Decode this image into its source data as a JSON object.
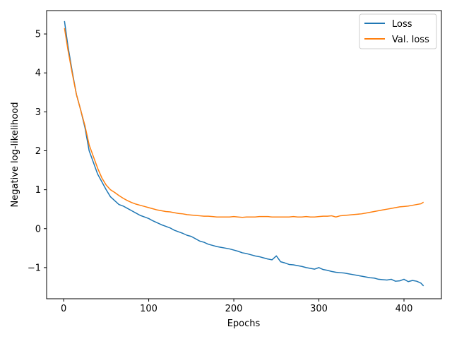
{
  "chart_data": {
    "type": "line",
    "title": "",
    "xlabel": "Epochs",
    "ylabel": "Negative log-likelihood",
    "xlim": [
      -20,
      444
    ],
    "ylim": [
      -1.8,
      5.6
    ],
    "xticks": [
      0,
      100,
      200,
      300,
      400
    ],
    "yticks": [
      -1,
      0,
      1,
      2,
      3,
      4,
      5
    ],
    "grid": false,
    "legend_position": "top-right",
    "series": [
      {
        "name": "Loss",
        "color": "#1f77b4",
        "x": [
          1,
          5,
          10,
          15,
          20,
          25,
          30,
          35,
          40,
          45,
          50,
          55,
          60,
          65,
          70,
          75,
          80,
          85,
          90,
          95,
          100,
          105,
          110,
          115,
          120,
          125,
          130,
          135,
          140,
          145,
          150,
          155,
          160,
          165,
          170,
          175,
          180,
          185,
          190,
          195,
          200,
          205,
          210,
          215,
          220,
          225,
          230,
          235,
          240,
          245,
          250,
          255,
          260,
          265,
          270,
          275,
          280,
          285,
          290,
          295,
          300,
          305,
          310,
          315,
          320,
          325,
          330,
          335,
          340,
          345,
          350,
          355,
          360,
          365,
          370,
          375,
          380,
          385,
          390,
          395,
          400,
          405,
          410,
          415,
          420,
          423
        ],
        "values": [
          5.33,
          4.7,
          4.05,
          3.45,
          3.05,
          2.6,
          2.0,
          1.7,
          1.4,
          1.2,
          1.0,
          0.82,
          0.72,
          0.62,
          0.58,
          0.52,
          0.46,
          0.4,
          0.34,
          0.3,
          0.26,
          0.2,
          0.15,
          0.1,
          0.06,
          0.02,
          -0.04,
          -0.08,
          -0.12,
          -0.17,
          -0.2,
          -0.26,
          -0.32,
          -0.35,
          -0.4,
          -0.43,
          -0.46,
          -0.48,
          -0.5,
          -0.52,
          -0.55,
          -0.58,
          -0.62,
          -0.64,
          -0.67,
          -0.7,
          -0.72,
          -0.75,
          -0.78,
          -0.8,
          -0.7,
          -0.85,
          -0.88,
          -0.92,
          -0.93,
          -0.95,
          -0.97,
          -1.0,
          -1.02,
          -1.04,
          -1.0,
          -1.05,
          -1.07,
          -1.1,
          -1.12,
          -1.13,
          -1.14,
          -1.16,
          -1.18,
          -1.2,
          -1.22,
          -1.24,
          -1.26,
          -1.27,
          -1.3,
          -1.31,
          -1.32,
          -1.3,
          -1.35,
          -1.34,
          -1.3,
          -1.36,
          -1.33,
          -1.35,
          -1.4,
          -1.47
        ]
      },
      {
        "name": "Val. loss",
        "color": "#ff7f0e",
        "x": [
          1,
          5,
          10,
          15,
          20,
          25,
          30,
          35,
          40,
          45,
          50,
          55,
          60,
          65,
          70,
          75,
          80,
          85,
          90,
          95,
          100,
          105,
          110,
          115,
          120,
          125,
          130,
          135,
          140,
          145,
          150,
          155,
          160,
          165,
          170,
          175,
          180,
          185,
          190,
          195,
          200,
          205,
          210,
          215,
          220,
          225,
          230,
          235,
          240,
          245,
          250,
          255,
          260,
          265,
          270,
          275,
          280,
          285,
          290,
          295,
          300,
          305,
          310,
          315,
          320,
          325,
          330,
          335,
          340,
          345,
          350,
          355,
          360,
          365,
          370,
          375,
          380,
          385,
          390,
          395,
          400,
          405,
          410,
          415,
          420,
          423
        ],
        "values": [
          5.15,
          4.6,
          4.0,
          3.45,
          3.05,
          2.65,
          2.15,
          1.85,
          1.55,
          1.3,
          1.12,
          1.0,
          0.93,
          0.85,
          0.78,
          0.72,
          0.67,
          0.63,
          0.6,
          0.57,
          0.54,
          0.51,
          0.48,
          0.46,
          0.44,
          0.43,
          0.41,
          0.39,
          0.38,
          0.36,
          0.35,
          0.34,
          0.33,
          0.32,
          0.32,
          0.31,
          0.3,
          0.3,
          0.3,
          0.3,
          0.31,
          0.3,
          0.29,
          0.3,
          0.3,
          0.3,
          0.31,
          0.31,
          0.31,
          0.3,
          0.3,
          0.3,
          0.3,
          0.3,
          0.31,
          0.3,
          0.3,
          0.31,
          0.3,
          0.3,
          0.31,
          0.32,
          0.32,
          0.33,
          0.3,
          0.33,
          0.34,
          0.35,
          0.36,
          0.37,
          0.38,
          0.4,
          0.42,
          0.44,
          0.46,
          0.48,
          0.5,
          0.52,
          0.54,
          0.56,
          0.57,
          0.58,
          0.6,
          0.62,
          0.64,
          0.68
        ]
      }
    ]
  }
}
